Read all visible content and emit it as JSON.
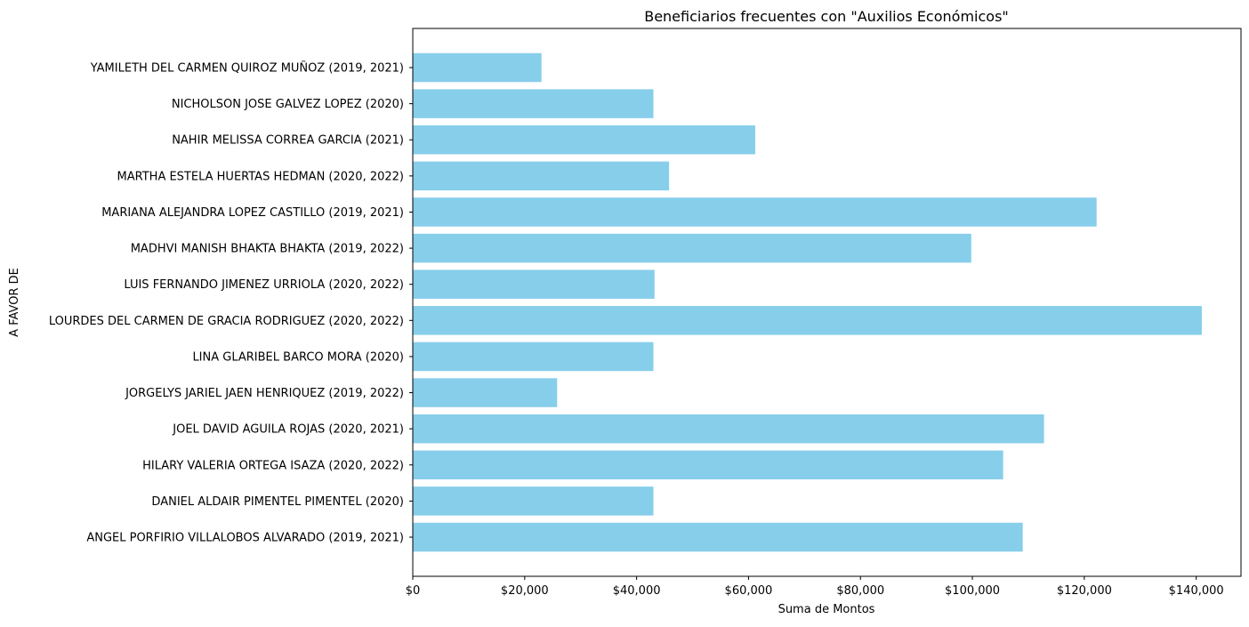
{
  "chart_data": {
    "type": "bar",
    "orientation": "horizontal",
    "title": "Beneficiarios frecuentes con \"Auxilios Económicos\"",
    "xlabel": "Suma de Montos",
    "ylabel": "A FAVOR DE",
    "xlim": [
      0,
      148000
    ],
    "x_ticks": [
      0,
      20000,
      40000,
      60000,
      80000,
      100000,
      120000,
      140000
    ],
    "x_tick_labels": [
      "$0",
      "$20,000",
      "$40,000",
      "$60,000",
      "$80,000",
      "$100,000",
      "$120,000",
      "$140,000"
    ],
    "grid": false,
    "bar_color": "#87CEEB",
    "categories": [
      "ANGEL PORFIRIO VILLALOBOS ALVARADO (2019, 2021)",
      "DANIEL ALDAIR PIMENTEL PIMENTEL (2020)",
      "HILARY VALERIA ORTEGA ISAZA (2020, 2022)",
      "JOEL DAVID AGUILA ROJAS (2020, 2021)",
      "JORGELYS JARIEL JAEN HENRIQUEZ (2019, 2022)",
      "LINA GLARIBEL BARCO MORA (2020)",
      "LOURDES DEL CARMEN DE GRACIA RODRIGUEZ (2020, 2022)",
      "LUIS FERNANDO JIMENEZ URRIOLA (2020, 2022)",
      "MADHVI MANISH BHAKTA BHAKTA (2019, 2022)",
      "MARIANA ALEJANDRA LOPEZ CASTILLO (2019, 2021)",
      "MARTHA ESTELA HUERTAS HEDMAN (2020, 2022)",
      "NAHIR MELISSA CORREA GARCIA (2021)",
      "NICHOLSON JOSE GALVEZ LOPEZ (2020)",
      "YAMILETH DEL CARMEN QUIROZ MUÑOZ (2019, 2021)"
    ],
    "values": [
      109000,
      43000,
      105500,
      112800,
      25800,
      43000,
      141000,
      43200,
      99800,
      122200,
      45800,
      61200,
      43000,
      23000
    ]
  }
}
